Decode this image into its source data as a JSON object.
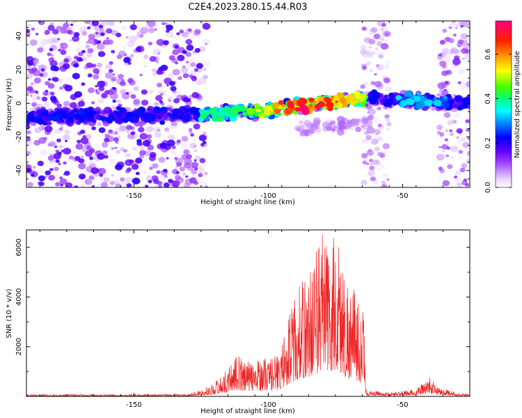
{
  "title": "C2E4.2023.280.15.44.R03",
  "chart_data": [
    {
      "type": "heatmap",
      "xlabel": "Height of straight line (km)",
      "ylabel": "Frequency (Hz)",
      "xlim": [
        -190,
        -25
      ],
      "ylim": [
        -50,
        49
      ],
      "xticks": [
        -150,
        -100,
        -50
      ],
      "yticks": [
        -40,
        -20,
        0,
        20,
        40
      ],
      "colorbar": {
        "label": "Normalized spectral amplitude",
        "range": [
          0.0,
          0.75
        ],
        "ticks": [
          0.0,
          0.2,
          0.4,
          0.6
        ],
        "colormap": "gnuplot-rainbow"
      },
      "features": [
        {
          "kind": "noise_band",
          "x": [
            -190,
            -123
          ],
          "y": [
            -50,
            49
          ],
          "max_amplitude": 0.2
        },
        {
          "kind": "noise_band",
          "x": [
            -65,
            -55
          ],
          "y": [
            -50,
            49
          ],
          "max_amplitude": 0.12
        },
        {
          "kind": "noise_band",
          "x": [
            -37,
            -25
          ],
          "y": [
            -50,
            49
          ],
          "max_amplitude": 0.15
        },
        {
          "kind": "signal_track",
          "points": [
            [
              -190,
              -8
            ],
            [
              -140,
              -7
            ],
            [
              -120,
              -6
            ],
            [
              -100,
              -4
            ],
            [
              -80,
              0
            ],
            [
              -63,
              3
            ],
            [
              -50,
              2
            ],
            [
              -35,
              1
            ],
            [
              -25,
              0
            ]
          ],
          "max_amplitude": 0.75
        },
        {
          "kind": "weak_track",
          "points": [
            [
              -90,
              -16
            ],
            [
              -70,
              -13
            ],
            [
              -62,
              -12
            ]
          ],
          "max_amplitude": 0.1
        }
      ]
    },
    {
      "type": "line",
      "xlabel": "Height of straight line (km)",
      "ylabel": "SNR (10 * v/v)",
      "xlim": [
        -190,
        -25
      ],
      "ylim": [
        0,
        6700
      ],
      "xticks": [
        -150,
        -100,
        -50
      ],
      "yticks": [
        2000,
        4000,
        6000
      ],
      "color": "#ee2222",
      "envelope": [
        {
          "x": -190,
          "y": 80
        },
        {
          "x": -130,
          "y": 90
        },
        {
          "x": -122,
          "y": 400
        },
        {
          "x": -116,
          "y": 1000
        },
        {
          "x": -112,
          "y": 1700
        },
        {
          "x": -107,
          "y": 1400
        },
        {
          "x": -102,
          "y": 1600
        },
        {
          "x": -96,
          "y": 1700
        },
        {
          "x": -92,
          "y": 3500
        },
        {
          "x": -88,
          "y": 4600
        },
        {
          "x": -84,
          "y": 5400
        },
        {
          "x": -80,
          "y": 6600
        },
        {
          "x": -77,
          "y": 6400
        },
        {
          "x": -74,
          "y": 6500
        },
        {
          "x": -71,
          "y": 5000
        },
        {
          "x": -68,
          "y": 4300
        },
        {
          "x": -64.5,
          "y": 3400
        },
        {
          "x": -63.5,
          "y": 250
        },
        {
          "x": -55,
          "y": 150
        },
        {
          "x": -45,
          "y": 300
        },
        {
          "x": -40,
          "y": 800
        },
        {
          "x": -37,
          "y": 400
        },
        {
          "x": -30,
          "y": 150
        },
        {
          "x": -25,
          "y": 120
        }
      ]
    }
  ]
}
